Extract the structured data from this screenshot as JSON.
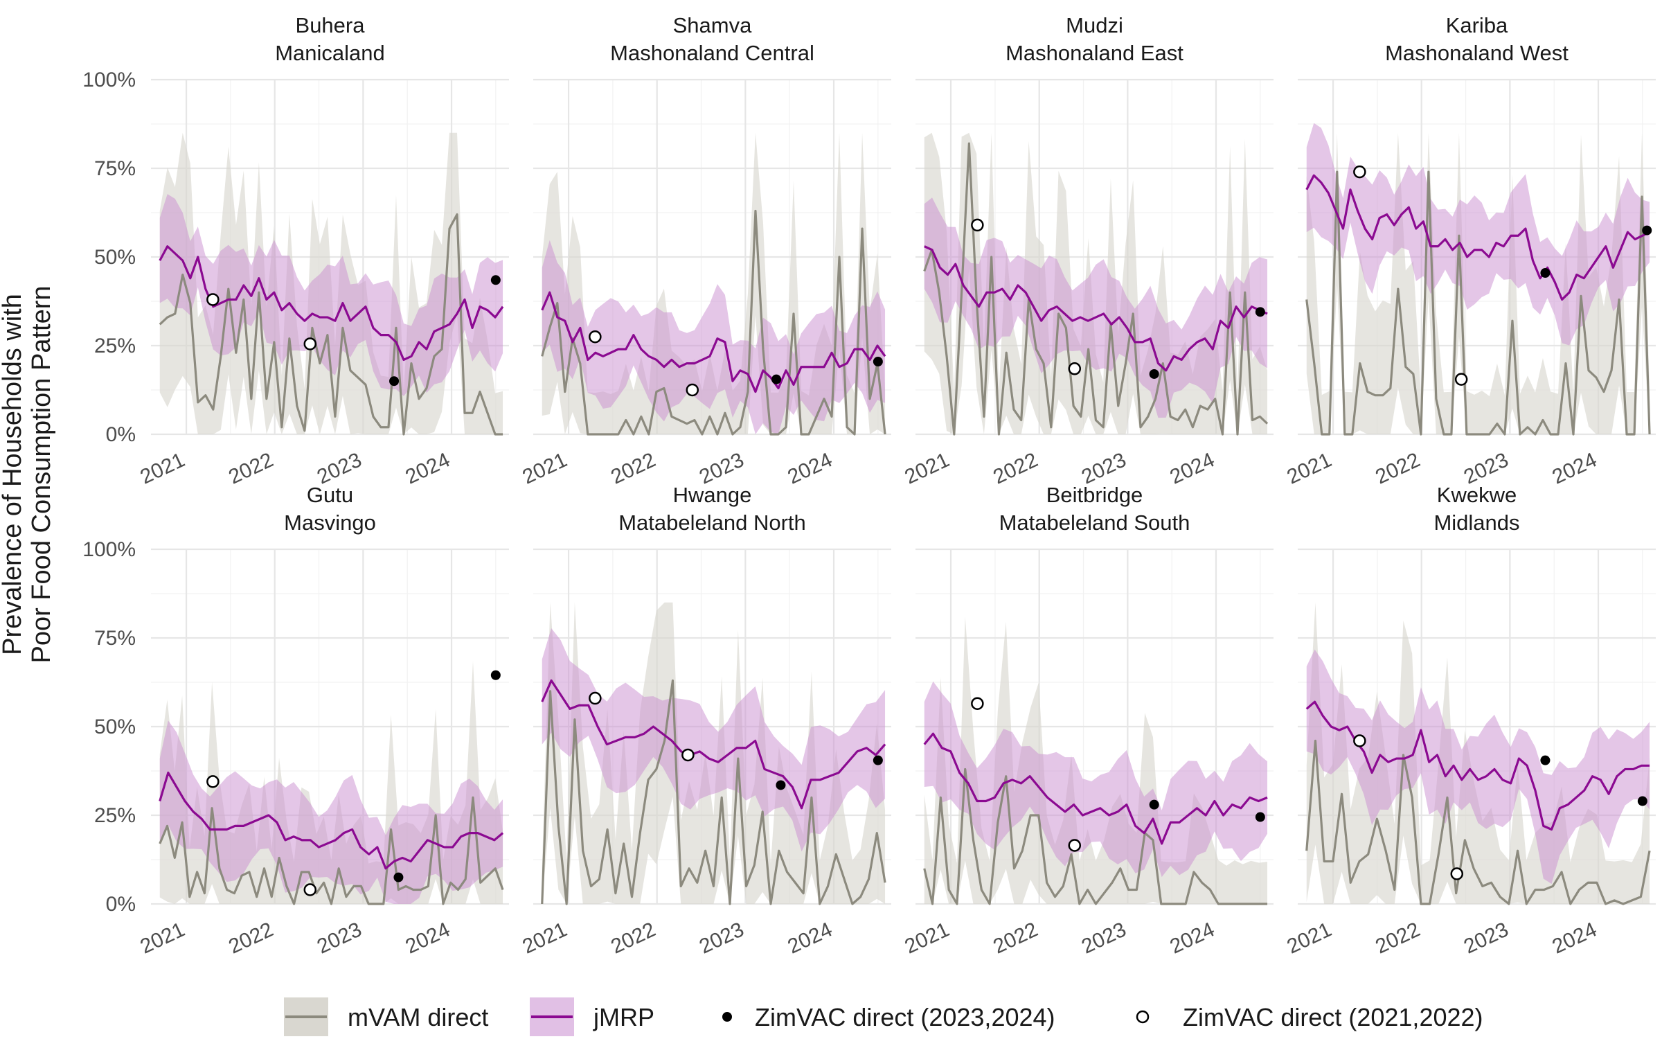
{
  "chart_data": {
    "type": "line",
    "ylabel_lines": [
      "Prevalence of Households with",
      "Poor Food Consumption Pattern"
    ],
    "xlabel": "",
    "ylim": [
      0,
      1
    ],
    "y_ticks": [
      "0%",
      "25%",
      "50%",
      "75%",
      "100%"
    ],
    "x_ticks": [
      "2021",
      "2022",
      "2023",
      "2024"
    ],
    "x_range": [
      2020.6,
      2024.65
    ],
    "grid": true,
    "legend_position": "bottom",
    "legend": {
      "mvam": "mVAM direct",
      "jmrp": "jMRP",
      "zim_2324": "ZimVAC direct (2023,2024)",
      "zim_2122": "ZimVAC direct (2021,2022)"
    },
    "colors": {
      "mvam_line": "#8c8a7e",
      "mvam_band": "#d9d7d0",
      "jmrp_line": "#8b0a91",
      "jmrp_band": "#c98dcf",
      "zim_filled": "#000000",
      "zim_open": "#000000"
    },
    "facets": [
      {
        "district": "Buhera",
        "province": "Manicaland",
        "mvam": [
          0.31,
          0.33,
          0.34,
          0.45,
          0.37,
          0.09,
          0.11,
          0.07,
          0.22,
          0.41,
          0.23,
          0.38,
          0.1,
          0.4,
          0.1,
          0.26,
          0.02,
          0.27,
          0.08,
          0.01,
          0.3,
          0.2,
          0.28,
          0.05,
          0.3,
          0.18,
          0.16,
          0.14,
          0.05,
          0.02,
          0.02,
          0.3,
          0.0,
          0.2,
          0.1,
          0.13,
          0.22,
          0.24,
          0.58,
          0.62,
          0.06,
          0.06,
          0.12,
          0.06,
          0.0,
          0.0
        ],
        "jmrp": [
          0.49,
          0.53,
          0.51,
          0.49,
          0.44,
          0.5,
          0.41,
          0.36,
          0.37,
          0.38,
          0.38,
          0.42,
          0.39,
          0.44,
          0.38,
          0.4,
          0.35,
          0.37,
          0.34,
          0.32,
          0.34,
          0.33,
          0.33,
          0.32,
          0.37,
          0.32,
          0.34,
          0.36,
          0.3,
          0.28,
          0.28,
          0.26,
          0.21,
          0.22,
          0.26,
          0.24,
          0.29,
          0.3,
          0.31,
          0.34,
          0.38,
          0.3,
          0.36,
          0.35,
          0.33,
          0.36
        ],
        "zim_2324": [
          {
            "x": 2023.35,
            "y": 0.15
          },
          {
            "x": 2024.5,
            "y": 0.435
          }
        ],
        "zim_2122": [
          {
            "x": 2021.3,
            "y": 0.38
          },
          {
            "x": 2022.4,
            "y": 0.255
          }
        ]
      },
      {
        "district": "Shamva",
        "province": "Mashonaland Central",
        "mvam": [
          0.22,
          0.3,
          0.37,
          0.12,
          0.27,
          0.2,
          0.0,
          0.0,
          0.0,
          0.0,
          0.0,
          0.04,
          0.0,
          0.05,
          0.0,
          0.12,
          0.13,
          0.05,
          0.04,
          0.03,
          0.04,
          0.0,
          0.05,
          0.0,
          0.06,
          0.0,
          0.02,
          0.12,
          0.63,
          0.24,
          0.0,
          0.0,
          0.02,
          0.34,
          0.0,
          0.0,
          0.05,
          0.1,
          0.05,
          0.5,
          0.02,
          0.0,
          0.58,
          0.1,
          0.2,
          0.0
        ],
        "jmrp": [
          0.35,
          0.4,
          0.33,
          0.32,
          0.26,
          0.3,
          0.21,
          0.23,
          0.22,
          0.23,
          0.24,
          0.24,
          0.28,
          0.24,
          0.22,
          0.21,
          0.19,
          0.21,
          0.19,
          0.2,
          0.2,
          0.21,
          0.22,
          0.27,
          0.26,
          0.15,
          0.18,
          0.17,
          0.12,
          0.18,
          0.16,
          0.13,
          0.18,
          0.14,
          0.19,
          0.19,
          0.19,
          0.19,
          0.23,
          0.19,
          0.2,
          0.24,
          0.24,
          0.21,
          0.25,
          0.22
        ],
        "zim_2324": [
          {
            "x": 2023.35,
            "y": 0.155
          },
          {
            "x": 2024.5,
            "y": 0.205
          }
        ],
        "zim_2122": [
          {
            "x": 2021.3,
            "y": 0.275
          },
          {
            "x": 2022.4,
            "y": 0.125
          }
        ]
      },
      {
        "district": "Mudzi",
        "province": "Mashonaland East",
        "mvam": [
          0.46,
          0.52,
          0.4,
          0.22,
          0.0,
          0.4,
          0.82,
          0.38,
          0.05,
          0.5,
          0.0,
          0.23,
          0.07,
          0.04,
          0.38,
          0.24,
          0.2,
          0.02,
          0.34,
          0.3,
          0.08,
          0.05,
          0.24,
          0.04,
          0.02,
          0.31,
          0.08,
          0.2,
          0.34,
          0.02,
          0.05,
          0.1,
          0.2,
          0.05,
          0.04,
          0.07,
          0.02,
          0.08,
          0.07,
          0.1,
          0.0,
          0.4,
          0.0,
          0.4,
          0.04,
          0.05,
          0.03
        ],
        "jmrp": [
          0.53,
          0.52,
          0.47,
          0.45,
          0.48,
          0.42,
          0.39,
          0.36,
          0.4,
          0.4,
          0.41,
          0.38,
          0.42,
          0.4,
          0.36,
          0.32,
          0.35,
          0.36,
          0.34,
          0.32,
          0.33,
          0.32,
          0.33,
          0.34,
          0.31,
          0.33,
          0.3,
          0.26,
          0.26,
          0.27,
          0.2,
          0.18,
          0.22,
          0.21,
          0.24,
          0.26,
          0.27,
          0.24,
          0.32,
          0.3,
          0.36,
          0.33,
          0.36,
          0.35,
          0.34
        ],
        "zim_2324": [
          {
            "x": 2023.3,
            "y": 0.17
          },
          {
            "x": 2024.5,
            "y": 0.345
          }
        ],
        "zim_2122": [
          {
            "x": 2021.3,
            "y": 0.59
          },
          {
            "x": 2022.4,
            "y": 0.185
          }
        ]
      },
      {
        "district": "Kariba",
        "province": "Mashonaland West",
        "mvam": [
          0.38,
          0.2,
          0.0,
          0.0,
          0.74,
          0.0,
          0.0,
          0.2,
          0.12,
          0.11,
          0.11,
          0.13,
          0.41,
          0.19,
          0.17,
          0.0,
          0.74,
          0.1,
          0.0,
          0.0,
          0.56,
          0.0,
          0.0,
          0.0,
          0.0,
          0.03,
          0.0,
          0.32,
          0.0,
          0.02,
          0.0,
          0.04,
          0.0,
          0.0,
          0.2,
          0.0,
          0.39,
          0.18,
          0.16,
          0.12,
          0.18,
          0.38,
          0.0,
          0.0,
          0.67,
          0.0
        ],
        "jmrp": [
          0.69,
          0.73,
          0.71,
          0.68,
          0.63,
          0.58,
          0.69,
          0.63,
          0.58,
          0.55,
          0.61,
          0.62,
          0.59,
          0.62,
          0.64,
          0.58,
          0.6,
          0.53,
          0.53,
          0.55,
          0.52,
          0.54,
          0.5,
          0.52,
          0.52,
          0.5,
          0.54,
          0.53,
          0.56,
          0.56,
          0.58,
          0.49,
          0.44,
          0.47,
          0.43,
          0.38,
          0.4,
          0.45,
          0.44,
          0.47,
          0.5,
          0.53,
          0.47,
          0.52,
          0.57,
          0.55,
          0.56,
          0.57
        ],
        "zim_2324": [
          {
            "x": 2023.4,
            "y": 0.455
          },
          {
            "x": 2024.55,
            "y": 0.575
          }
        ],
        "zim_2122": [
          {
            "x": 2021.3,
            "y": 0.74
          },
          {
            "x": 2022.45,
            "y": 0.155
          }
        ]
      },
      {
        "district": "Gutu",
        "province": "Masvingo",
        "mvam": [
          0.17,
          0.22,
          0.13,
          0.23,
          0.02,
          0.09,
          0.03,
          0.27,
          0.1,
          0.04,
          0.03,
          0.08,
          0.09,
          0.02,
          0.1,
          0.02,
          0.13,
          0.05,
          0.0,
          0.09,
          0.09,
          0.03,
          0.06,
          0.0,
          0.1,
          0.02,
          0.05,
          0.05,
          0.0,
          0.0,
          0.0,
          0.21,
          0.04,
          0.05,
          0.04,
          0.04,
          0.05,
          0.25,
          0.0,
          0.06,
          0.04,
          0.07,
          0.3,
          0.06,
          0.08,
          0.1,
          0.04
        ],
        "jmrp": [
          0.29,
          0.37,
          0.33,
          0.29,
          0.26,
          0.24,
          0.21,
          0.21,
          0.21,
          0.22,
          0.22,
          0.23,
          0.24,
          0.25,
          0.23,
          0.18,
          0.19,
          0.18,
          0.18,
          0.16,
          0.17,
          0.18,
          0.2,
          0.21,
          0.16,
          0.14,
          0.16,
          0.1,
          0.12,
          0.13,
          0.12,
          0.15,
          0.18,
          0.17,
          0.16,
          0.16,
          0.19,
          0.2,
          0.2,
          0.19,
          0.18,
          0.2
        ],
        "zim_2324": [
          {
            "x": 2023.4,
            "y": 0.075
          },
          {
            "x": 2024.5,
            "y": 0.645
          }
        ],
        "zim_2122": [
          {
            "x": 2021.3,
            "y": 0.345
          },
          {
            "x": 2022.4,
            "y": 0.04
          }
        ]
      },
      {
        "district": "Hwange",
        "province": "Matabeleland North",
        "mvam": [
          0.0,
          0.6,
          0.22,
          0.0,
          0.52,
          0.15,
          0.05,
          0.07,
          0.21,
          0.03,
          0.17,
          0.02,
          0.2,
          0.35,
          0.38,
          0.46,
          0.63,
          0.05,
          0.1,
          0.06,
          0.15,
          0.05,
          0.3,
          0.0,
          0.41,
          0.05,
          0.11,
          0.26,
          0.0,
          0.15,
          0.09,
          0.06,
          0.03,
          0.3,
          0.0,
          0.05,
          0.14,
          0.07,
          0.0,
          0.02,
          0.07,
          0.2,
          0.06
        ],
        "jmrp": [
          0.57,
          0.63,
          0.59,
          0.55,
          0.56,
          0.56,
          0.5,
          0.45,
          0.46,
          0.47,
          0.47,
          0.48,
          0.5,
          0.48,
          0.46,
          0.43,
          0.42,
          0.43,
          0.41,
          0.4,
          0.42,
          0.44,
          0.44,
          0.46,
          0.38,
          0.37,
          0.36,
          0.33,
          0.27,
          0.35,
          0.35,
          0.36,
          0.37,
          0.4,
          0.43,
          0.44,
          0.42,
          0.45
        ],
        "zim_2324": [
          {
            "x": 2023.4,
            "y": 0.335
          },
          {
            "x": 2024.5,
            "y": 0.405
          }
        ],
        "zim_2122": [
          {
            "x": 2021.3,
            "y": 0.58
          },
          {
            "x": 2022.35,
            "y": 0.42
          }
        ]
      },
      {
        "district": "Beitbridge",
        "province": "Matabeleland South",
        "mvam": [
          0.1,
          0.0,
          0.3,
          0.04,
          0.0,
          0.38,
          0.18,
          0.04,
          0.0,
          0.23,
          0.36,
          0.1,
          0.15,
          0.25,
          0.25,
          0.06,
          0.02,
          0.05,
          0.14,
          0.0,
          0.04,
          0.0,
          0.03,
          0.06,
          0.1,
          0.04,
          0.04,
          0.2,
          0.18,
          0.0,
          0.0,
          0.0,
          0.0,
          0.09,
          0.06,
          0.04,
          0.0,
          0.0,
          0.0,
          0.0,
          0.0,
          0.0,
          0.0
        ],
        "jmrp": [
          0.45,
          0.48,
          0.44,
          0.43,
          0.37,
          0.34,
          0.29,
          0.29,
          0.3,
          0.34,
          0.35,
          0.34,
          0.36,
          0.33,
          0.3,
          0.28,
          0.26,
          0.28,
          0.25,
          0.26,
          0.27,
          0.25,
          0.26,
          0.28,
          0.22,
          0.2,
          0.24,
          0.17,
          0.23,
          0.23,
          0.25,
          0.27,
          0.25,
          0.29,
          0.25,
          0.28,
          0.27,
          0.3,
          0.29,
          0.3
        ],
        "zim_2324": [
          {
            "x": 2023.3,
            "y": 0.28
          },
          {
            "x": 2024.5,
            "y": 0.245
          }
        ],
        "zim_2122": [
          {
            "x": 2021.3,
            "y": 0.565
          },
          {
            "x": 2022.4,
            "y": 0.165
          }
        ]
      },
      {
        "district": "Kwekwe",
        "province": "Midlands",
        "mvam": [
          0.15,
          0.46,
          0.12,
          0.12,
          0.31,
          0.06,
          0.12,
          0.14,
          0.24,
          0.15,
          0.04,
          0.42,
          0.3,
          0.0,
          0.0,
          0.14,
          0.3,
          0.03,
          0.18,
          0.1,
          0.05,
          0.06,
          0.02,
          0.0,
          0.15,
          0.0,
          0.04,
          0.04,
          0.05,
          0.09,
          0.0,
          0.04,
          0.06,
          0.06,
          0.0,
          0.01,
          0.0,
          0.01,
          0.02,
          0.15
        ],
        "jmrp": [
          0.55,
          0.57,
          0.53,
          0.5,
          0.49,
          0.5,
          0.46,
          0.43,
          0.37,
          0.42,
          0.4,
          0.41,
          0.41,
          0.42,
          0.49,
          0.4,
          0.42,
          0.36,
          0.39,
          0.35,
          0.38,
          0.35,
          0.36,
          0.38,
          0.35,
          0.34,
          0.41,
          0.39,
          0.32,
          0.22,
          0.21,
          0.27,
          0.28,
          0.3,
          0.32,
          0.36,
          0.35,
          0.31,
          0.36,
          0.38,
          0.38,
          0.39,
          0.39
        ],
        "zim_2324": [
          {
            "x": 2023.4,
            "y": 0.405
          },
          {
            "x": 2024.5,
            "y": 0.29
          }
        ],
        "zim_2122": [
          {
            "x": 2021.3,
            "y": 0.46
          },
          {
            "x": 2022.4,
            "y": 0.085
          }
        ]
      }
    ]
  }
}
